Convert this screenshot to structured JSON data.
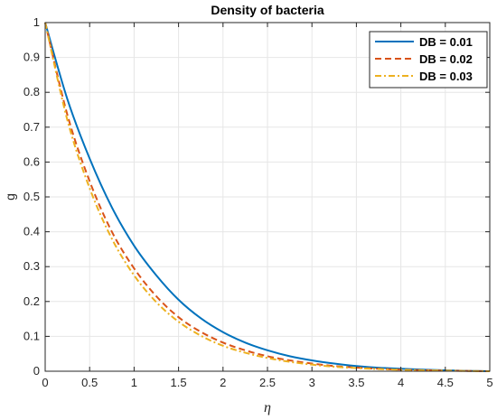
{
  "chart_data": {
    "type": "line",
    "title": "Density of bacteria",
    "xlabel": "η",
    "ylabel": "g",
    "xlim": [
      0,
      5
    ],
    "ylim": [
      0,
      1
    ],
    "xticks": [
      "0",
      "0.5",
      "1",
      "1.5",
      "2",
      "2.5",
      "3",
      "3.5",
      "4",
      "4.5",
      "5"
    ],
    "yticks": [
      "0",
      "0.1",
      "0.2",
      "0.3",
      "0.4",
      "0.5",
      "0.6",
      "0.7",
      "0.8",
      "0.9",
      "1"
    ],
    "grid": true,
    "legend_position": "top-right",
    "x": [
      0,
      0.25,
      0.5,
      0.75,
      1,
      1.25,
      1.5,
      1.75,
      2,
      2.25,
      2.5,
      2.75,
      3,
      3.25,
      3.5,
      3.75,
      4,
      4.25,
      4.5,
      4.75,
      5
    ],
    "series": [
      {
        "name": "DB = 0.01",
        "color": "#0072BD",
        "style": "solid",
        "values": [
          1.0,
          0.78,
          0.61,
          0.47,
          0.36,
          0.275,
          0.205,
          0.152,
          0.112,
          0.082,
          0.06,
          0.043,
          0.031,
          0.022,
          0.015,
          0.01,
          0.007,
          0.0045,
          0.0025,
          0.001,
          0.0
        ]
      },
      {
        "name": "DB = 0.02",
        "color": "#D95319",
        "style": "dashed",
        "values": [
          1.0,
          0.735,
          0.545,
          0.4,
          0.295,
          0.215,
          0.155,
          0.113,
          0.082,
          0.06,
          0.043,
          0.031,
          0.022,
          0.015,
          0.0105,
          0.007,
          0.0045,
          0.003,
          0.0018,
          0.0008,
          0.0
        ]
      },
      {
        "name": "DB = 0.03",
        "color": "#EDB120",
        "style": "dashdot",
        "values": [
          1.0,
          0.72,
          0.525,
          0.38,
          0.275,
          0.198,
          0.142,
          0.102,
          0.073,
          0.053,
          0.038,
          0.027,
          0.019,
          0.013,
          0.009,
          0.006,
          0.004,
          0.0026,
          0.0016,
          0.0007,
          0.0
        ]
      }
    ]
  }
}
